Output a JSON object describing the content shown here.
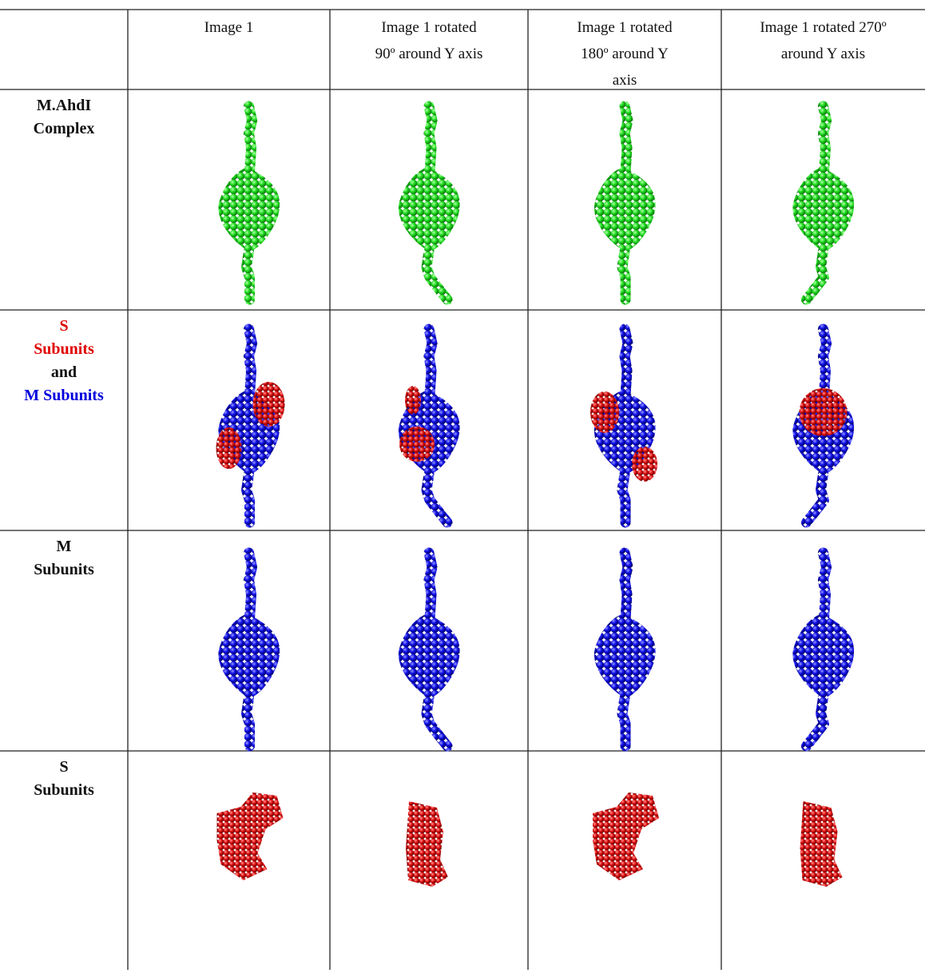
{
  "header": {
    "cells": [
      [],
      [
        "Image 1"
      ],
      [
        "Image 1 rotated",
        "90º around Y axis"
      ],
      [
        "Image 1 rotated",
        "180º around Y",
        "axis"
      ],
      [
        "Image 1 rotated 270º",
        "around Y axis"
      ]
    ]
  },
  "rows": [
    {
      "label": [
        "M.AhdI",
        "Complex"
      ]
    },
    {
      "label": [
        "S",
        "Subunits",
        "and",
        "M Subunits"
      ]
    },
    {
      "label": [
        "M",
        "Subunits"
      ]
    },
    {
      "label": [
        "S",
        "Subunits"
      ]
    }
  ]
}
